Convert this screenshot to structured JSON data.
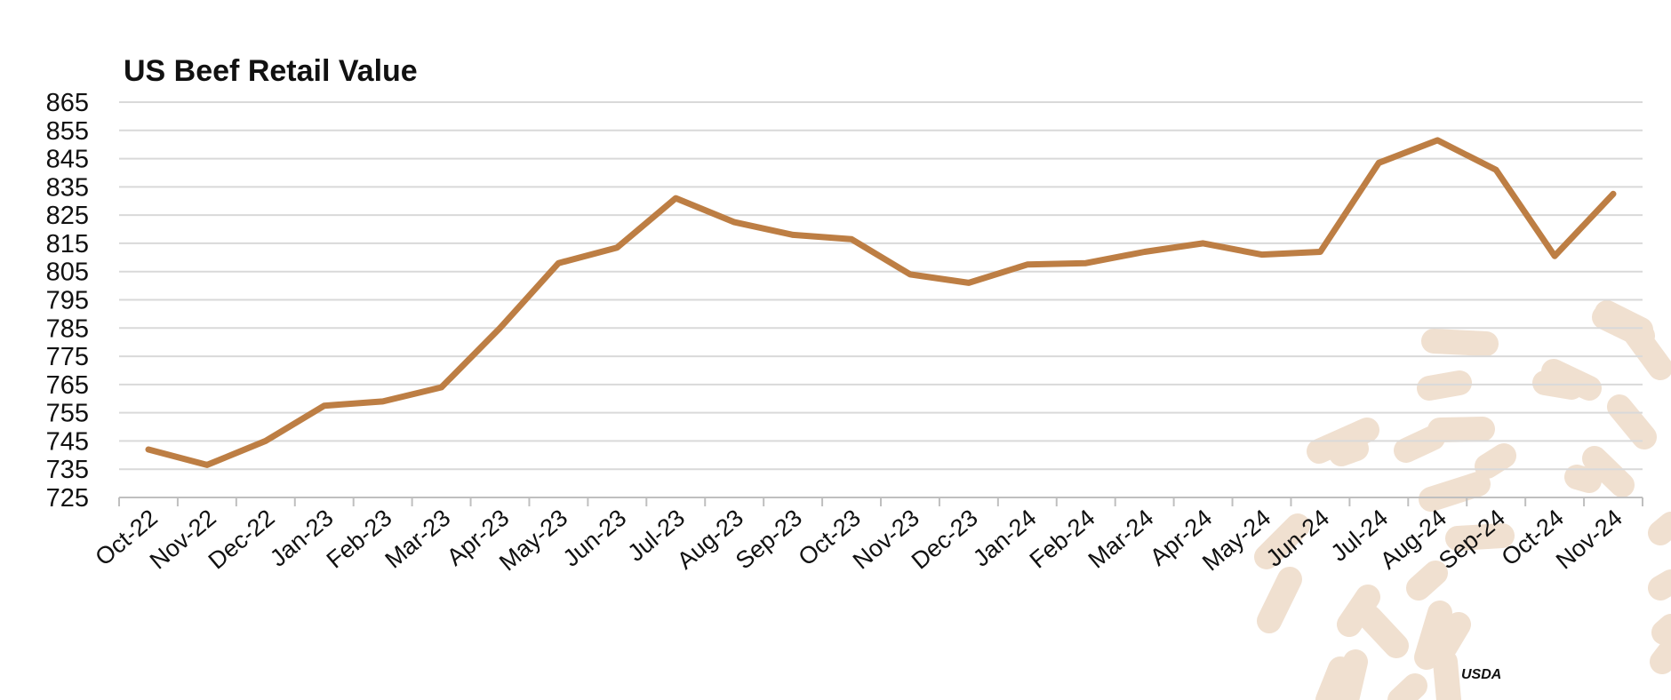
{
  "chart_data": {
    "type": "line",
    "title": "US Beef Retail Value",
    "xlabel": "",
    "ylabel": "",
    "categories": [
      "Oct-22",
      "Nov-22",
      "Dec-22",
      "Jan-23",
      "Feb-23",
      "Mar-23",
      "Apr-23",
      "May-23",
      "Jun-23",
      "Jul-23",
      "Aug-23",
      "Sep-23",
      "Oct-23",
      "Nov-23",
      "Dec-23",
      "Jan-24",
      "Feb-24",
      "Mar-24",
      "Apr-24",
      "May-24",
      "Jun-24",
      "Jul-24",
      "Aug-24",
      "Sep-24",
      "Oct-24",
      "Nov-24"
    ],
    "series": [
      {
        "values": [
          742,
          736.5,
          745,
          757.5,
          759,
          764,
          785,
          808,
          813.5,
          831,
          822.5,
          818,
          816.5,
          804,
          801,
          807.5,
          808,
          812,
          815,
          811,
          812,
          843.5,
          851.5,
          841,
          810.5,
          832.5
        ],
        "color": "#bd7e44"
      }
    ],
    "ylim": [
      725,
      865
    ],
    "yticks": [
      725,
      735,
      745,
      755,
      765,
      775,
      785,
      795,
      805,
      815,
      825,
      835,
      845,
      855,
      865
    ],
    "grid": true,
    "legend": "none",
    "source": "USDA",
    "colors": {
      "line": "#bd7e44",
      "grid": "#d9d9d9",
      "axis": "#bfbfbf",
      "decor": "#f0e0d0",
      "text": "#111111"
    }
  }
}
